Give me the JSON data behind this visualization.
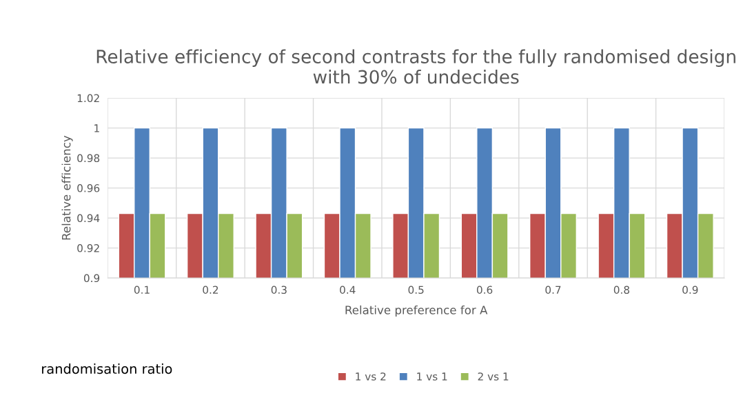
{
  "chart_data": {
    "type": "bar",
    "title": "Relative efficiency of second contrasts for the fully randomised design with 30% of undecides",
    "xlabel": "Relative preference for A",
    "ylabel": "Relative efficiency",
    "legend_title": "randomisation ratio",
    "categories": [
      "0.1",
      "0.2",
      "0.3",
      "0.4",
      "0.5",
      "0.6",
      "0.7",
      "0.8",
      "0.9"
    ],
    "series": [
      {
        "name": "1 vs 2",
        "color": "#c0504d",
        "values": [
          0.943,
          0.943,
          0.943,
          0.943,
          0.943,
          0.943,
          0.943,
          0.943,
          0.943
        ]
      },
      {
        "name": "1 vs 1",
        "color": "#4f81bd",
        "values": [
          1,
          1,
          1,
          1,
          1,
          1,
          1,
          1,
          1
        ]
      },
      {
        "name": "2 vs 1",
        "color": "#9bbb59",
        "values": [
          0.943,
          0.943,
          0.943,
          0.943,
          0.943,
          0.943,
          0.943,
          0.943,
          0.943
        ]
      }
    ],
    "ylim": [
      0.9,
      1.02
    ],
    "yticks": [
      {
        "value": 0.9,
        "label": "0.9"
      },
      0.92,
      0.94,
      0.96,
      0.98,
      {
        "value": 1,
        "label": "1"
      },
      1.02
    ],
    "grid": true,
    "legend": "bottom"
  }
}
